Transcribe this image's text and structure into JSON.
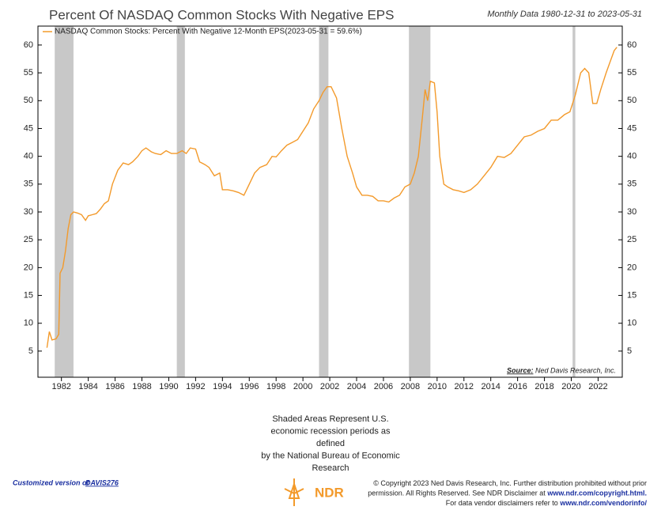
{
  "chart_data": {
    "type": "line",
    "title": "Percent Of NASDAQ Common Stocks With Negative EPS",
    "subtitle": "Monthly Data 1980-12-31 to 2023-05-31",
    "source_label": "Source:",
    "source": "Ned Davis Research, Inc.",
    "note": [
      "Shaded Areas Represent U.S.",
      "economic recession periods as",
      "defined",
      "by the National Bureau of Economic",
      "Research"
    ],
    "recession_color": "#c8c8c8",
    "recessions": [
      [
        1981.5,
        1982.9
      ],
      [
        1990.6,
        1991.2
      ],
      [
        2001.2,
        2001.9
      ],
      [
        2007.9,
        2009.5
      ],
      [
        2020.1,
        2020.3
      ]
    ],
    "x": [
      1980.92,
      1981.1,
      1981.3,
      1981.6,
      1981.8,
      1981.9,
      1982.1,
      1982.3,
      1982.5,
      1982.7,
      1982.9,
      1983.2,
      1983.5,
      1983.8,
      1984.0,
      1984.3,
      1984.6,
      1984.9,
      1985.2,
      1985.5,
      1985.8,
      1986.2,
      1986.6,
      1987.0,
      1987.3,
      1987.7,
      1988.0,
      1988.3,
      1988.7,
      1989.0,
      1989.4,
      1989.8,
      1990.2,
      1990.6,
      1991.0,
      1991.3,
      1991.6,
      1992.0,
      1992.3,
      1992.7,
      1993.0,
      1993.4,
      1993.8,
      1994.0,
      1994.4,
      1994.8,
      1995.2,
      1995.6,
      1996.0,
      1996.4,
      1996.8,
      1997.3,
      1997.7,
      1998.0,
      1998.4,
      1998.8,
      1999.2,
      1999.6,
      2000.0,
      2000.4,
      2000.8,
      2001.2,
      2001.5,
      2001.8,
      2002.1,
      2002.5,
      2002.9,
      2003.3,
      2003.7,
      2004.0,
      2004.4,
      2004.8,
      2005.2,
      2005.6,
      2006.0,
      2006.4,
      2006.8,
      2007.2,
      2007.6,
      2008.0,
      2008.3,
      2008.6,
      2008.9,
      2009.1,
      2009.3,
      2009.5,
      2009.8,
      2010.0,
      2010.2,
      2010.5,
      2010.8,
      2011.2,
      2011.6,
      2012.0,
      2012.5,
      2013.0,
      2013.5,
      2014.0,
      2014.5,
      2015.0,
      2015.5,
      2016.0,
      2016.5,
      2017.0,
      2017.5,
      2018.0,
      2018.5,
      2019.0,
      2019.5,
      2019.9,
      2020.3,
      2020.7,
      2021.0,
      2021.3,
      2021.6,
      2021.9,
      2022.2,
      2022.6,
      2022.9,
      2023.2,
      2023.4
    ],
    "series": [
      {
        "name": "NASDAQ Common Stocks: Percent With Negative 12-Month EPS(2023-05-31 = 59.6%)",
        "color": "#f39a2b",
        "values": [
          5.6,
          8.5,
          7.0,
          7.2,
          8,
          19,
          20,
          23,
          27,
          29.5,
          30,
          29.8,
          29.5,
          28.5,
          29.3,
          29.5,
          29.7,
          30.5,
          31.5,
          32,
          35,
          37.5,
          38.8,
          38.5,
          39,
          40,
          41,
          41.5,
          40.8,
          40.5,
          40.3,
          41,
          40.5,
          40.5,
          41,
          40.5,
          41.5,
          41.3,
          39,
          38.5,
          38,
          36.5,
          37,
          34,
          34,
          33.8,
          33.5,
          33,
          35,
          37,
          38,
          38.5,
          40,
          39.9,
          41,
          42,
          42.5,
          43,
          44.5,
          46,
          48.5,
          50,
          51.5,
          52.5,
          52.5,
          50.5,
          45,
          40,
          37,
          34.5,
          33,
          33,
          32.8,
          32,
          32,
          31.8,
          32.5,
          33,
          34.5,
          35,
          37,
          40,
          47,
          52,
          50,
          53.5,
          53.2,
          48,
          40,
          35,
          34.5,
          34,
          33.8,
          33.5,
          34,
          35,
          36.5,
          38,
          40,
          39.8,
          40.5,
          42,
          43.5,
          43.8,
          44.5,
          45,
          46.5,
          46.5,
          47.5,
          48,
          51,
          55,
          55.8,
          55,
          49.5,
          49.5,
          52,
          55,
          57,
          59,
          59.6
        ]
      }
    ],
    "xlim": [
      1980.25,
      2023.8
    ],
    "ylim": [
      0.3,
      63.4
    ],
    "xticks": [
      1982,
      1984,
      1986,
      1988,
      1990,
      1992,
      1994,
      1996,
      1998,
      2000,
      2002,
      2004,
      2006,
      2008,
      2010,
      2012,
      2014,
      2016,
      2018,
      2020,
      2022
    ],
    "yticks": [
      5,
      10,
      15,
      20,
      25,
      30,
      35,
      40,
      45,
      50,
      55,
      60
    ]
  },
  "footer": {
    "custom_prefix": "Customized version of",
    "custom_link": "DAVIS276",
    "logo": "NDR",
    "copyright": [
      {
        "text": "© Copyright 2023 Ned Davis Research, Inc. Further distribution prohibited without prior",
        "link": ""
      },
      {
        "text": "permission. All Rights Reserved. See NDR Disclaimer at",
        "link": "www.ndr.com/copyright.html."
      },
      {
        "text": "For data vendor disclaimers refer to",
        "link": "www.ndr.com/vendorinfo/"
      }
    ]
  }
}
